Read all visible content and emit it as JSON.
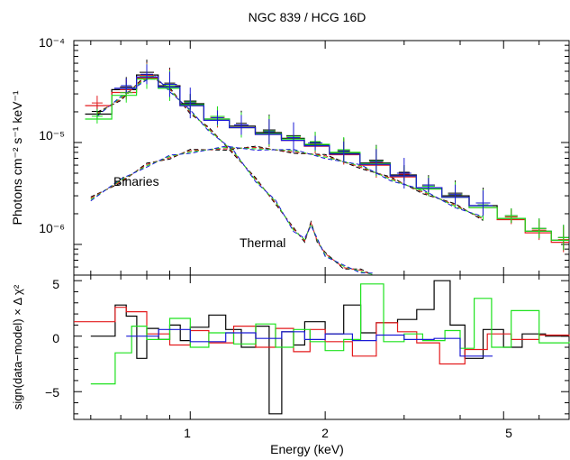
{
  "chart_data": [
    {
      "type": "line",
      "title": "NGC 839 / HCG 16D",
      "xlabel": "",
      "ylabel": "Photons cm⁻² s⁻¹ keV⁻¹",
      "xscale": "log",
      "yscale": "log",
      "xlim": [
        0.55,
        7.0
      ],
      "ylim": [
        5e-07,
        0.0001
      ],
      "y_tick_labels": [
        "10⁻⁶",
        "10⁻⁵",
        "10⁻⁴"
      ],
      "y_ticks": [
        1e-06,
        1e-05,
        0.0001
      ],
      "annotations": [
        "Binaries",
        "Thermal"
      ],
      "colors": {
        "black": "#000000",
        "red": "#e31a1c",
        "green": "#1ee21e",
        "blue": "#1a1ad6"
      },
      "series": [
        {
          "color": "black",
          "x": [
            0.62,
            0.72,
            0.8,
            0.9,
            1.0,
            1.15,
            1.3,
            1.5,
            1.7,
            1.9,
            2.2,
            2.6,
            3.0,
            3.4,
            3.9,
            4.5,
            5.2,
            6.0,
            6.8
          ],
          "y": [
            1.9e-05,
            3.3e-05,
            4.6e-05,
            3.6e-05,
            2.4e-05,
            1.7e-05,
            1.45e-05,
            1.25e-05,
            1.1e-05,
            9.5e-06,
            7.8e-06,
            6.3e-06,
            4.8e-06,
            3.6e-06,
            3e-06,
            2.4e-06,
            1.8e-06,
            1.35e-06,
            1.1e-06
          ]
        },
        {
          "color": "red",
          "x": [
            0.62,
            0.72,
            0.8,
            0.9,
            1.0,
            1.15,
            1.3,
            1.5,
            1.7,
            1.9,
            2.2,
            2.6,
            3.0,
            3.4,
            3.9,
            4.5,
            5.2,
            6.0,
            6.8
          ],
          "y": [
            2.3e-05,
            3.1e-05,
            4.3e-05,
            3.5e-05,
            2.3e-05,
            1.65e-05,
            1.4e-05,
            1.2e-05,
            1.05e-05,
            9.2e-06,
            7.6e-06,
            6e-06,
            4.6e-06,
            3.5e-06,
            2.9e-06,
            2.3e-06,
            1.75e-06,
            1.3e-06,
            1.05e-06
          ]
        },
        {
          "color": "green",
          "x": [
            0.62,
            0.72,
            0.8,
            0.9,
            1.0,
            1.15,
            1.3,
            1.5,
            1.7,
            1.9,
            2.2,
            2.6,
            3.0,
            3.4,
            3.9,
            4.5,
            5.2,
            6.0,
            6.8
          ],
          "y": [
            1.7e-05,
            2.9e-05,
            4.2e-05,
            3.4e-05,
            2.35e-05,
            1.7e-05,
            1.4e-05,
            1.22e-05,
            1.08e-05,
            9.6e-06,
            8e-06,
            6.2e-06,
            4.7e-06,
            3.5e-06,
            2.9e-06,
            2.3e-06,
            1.8e-06,
            1.35e-06,
            1.1e-06
          ]
        },
        {
          "color": "blue",
          "x": [
            0.72,
            0.8,
            0.9,
            1.0,
            1.15,
            1.3,
            1.5,
            1.7,
            1.9,
            2.2,
            2.6,
            3.0,
            3.4,
            3.9,
            4.5
          ],
          "y": [
            3.4e-05,
            4.4e-05,
            3.5e-05,
            2.3e-05,
            1.65e-05,
            1.4e-05,
            1.2e-05,
            1.05e-05,
            9.3e-06,
            7.7e-06,
            6.1e-06,
            4.7e-06,
            3.6e-06,
            2.9e-06,
            2.4e-06
          ]
        }
      ],
      "components": [
        {
          "name": "Binaries",
          "x": [
            0.6,
            0.7,
            0.8,
            0.9,
            1.0,
            1.2,
            1.4,
            1.7,
            2.0,
            2.4,
            2.8,
            3.3,
            3.9,
            4.5
          ],
          "y": [
            2.8e-06,
            4.2e-06,
            6e-06,
            7.2e-06,
            8.2e-06,
            8.8e-06,
            8.8e-06,
            8.2e-06,
            7.3e-06,
            5.8e-06,
            4.4e-06,
            3.3e-06,
            2.4e-06,
            1.8e-06
          ]
        },
        {
          "name": "Thermal",
          "x": [
            0.62,
            0.7,
            0.78,
            0.83,
            0.9,
            1.0,
            1.1,
            1.25,
            1.4,
            1.55,
            1.7,
            1.8,
            1.86,
            1.92,
            2.0,
            2.2,
            2.4,
            2.55
          ],
          "y": [
            1.9e-05,
            2.7e-05,
            4e-05,
            4.4e-05,
            3.3e-05,
            2e-05,
            1.35e-05,
            8e-06,
            4.3e-06,
            2.6e-06,
            1.4e-06,
            1.1e-06,
            1.6e-06,
            1.1e-06,
            8e-07,
            6e-07,
            5.5e-07,
            5e-07
          ]
        }
      ]
    },
    {
      "type": "line",
      "xlabel": "Energy (keV)",
      "ylabel": "sign(data−model) × Δ χ²",
      "xscale": "log",
      "xlim": [
        0.55,
        7.0
      ],
      "ylim": [
        -7.5,
        5.5
      ],
      "x_ticks": [
        1,
        2,
        5
      ],
      "x_tick_labels": [
        "1",
        "2",
        "5"
      ],
      "y_ticks": [
        -5,
        0,
        5
      ],
      "y_tick_labels": [
        "−5",
        "0",
        "5"
      ],
      "series": [
        {
          "color": "black",
          "x": [
            0.6,
            0.68,
            0.72,
            0.76,
            0.8,
            0.85,
            0.9,
            0.95,
            1.0,
            1.1,
            1.2,
            1.3,
            1.4,
            1.5,
            1.6,
            1.7,
            1.8,
            2.0,
            2.2,
            2.4,
            2.6,
            2.9,
            3.2,
            3.5,
            3.8,
            4.1,
            4.5,
            5.0,
            5.5,
            6.2,
            7.0
          ],
          "y": [
            0.0,
            2.8,
            1.8,
            -2.0,
            0.7,
            -0.3,
            1.0,
            -0.4,
            0.8,
            1.9,
            0.6,
            -1.0,
            0.9,
            -7.0,
            0.4,
            -0.8,
            1.3,
            0.2,
            2.8,
            0.3,
            1.2,
            1.5,
            2.4,
            5.0,
            1.0,
            -2.0,
            0.6,
            -1.0,
            0.2,
            0.0,
            0.0
          ]
        },
        {
          "color": "red",
          "x": [
            0.55,
            0.68,
            0.72,
            0.8,
            0.9,
            1.0,
            1.1,
            1.25,
            1.4,
            1.55,
            1.7,
            1.85,
            2.0,
            2.3,
            2.6,
            2.9,
            3.2,
            3.6,
            4.1,
            4.6,
            5.2,
            6.0,
            7.0
          ],
          "y": [
            1.3,
            2.6,
            2.2,
            0.2,
            -0.8,
            0.5,
            -0.6,
            0.9,
            -1.0,
            0.7,
            -1.4,
            0.6,
            -0.5,
            -1.8,
            1.2,
            0.4,
            -0.6,
            -2.5,
            -1.2,
            0.2,
            -0.3,
            0.1,
            0.0
          ]
        },
        {
          "color": "green",
          "x": [
            0.6,
            0.68,
            0.74,
            0.8,
            0.9,
            1.0,
            1.1,
            1.25,
            1.4,
            1.55,
            1.7,
            1.85,
            2.0,
            2.2,
            2.4,
            2.7,
            3.0,
            3.3,
            3.7,
            4.0,
            4.3,
            4.7,
            5.2,
            6.0,
            7.0
          ],
          "y": [
            -4.3,
            -1.5,
            0.9,
            -0.3,
            1.6,
            -1.0,
            0.3,
            -0.7,
            1.1,
            -1.0,
            0.6,
            -0.5,
            -1.3,
            -0.3,
            4.7,
            -0.5,
            0.2,
            -0.4,
            0.5,
            -1.1,
            3.4,
            -1.0,
            2.3,
            -0.6,
            -0.5
          ]
        },
        {
          "color": "blue",
          "x": [
            0.72,
            0.85,
            1.0,
            1.2,
            1.4,
            1.6,
            1.8,
            2.0,
            2.3,
            2.6,
            3.0,
            3.5,
            4.0,
            4.5
          ],
          "y": [
            0.0,
            0.6,
            -0.5,
            0.3,
            -0.2,
            0.4,
            -0.3,
            0.2,
            -0.4,
            0.1,
            -0.3,
            -0.2,
            -1.8,
            -1.8
          ]
        }
      ]
    }
  ]
}
